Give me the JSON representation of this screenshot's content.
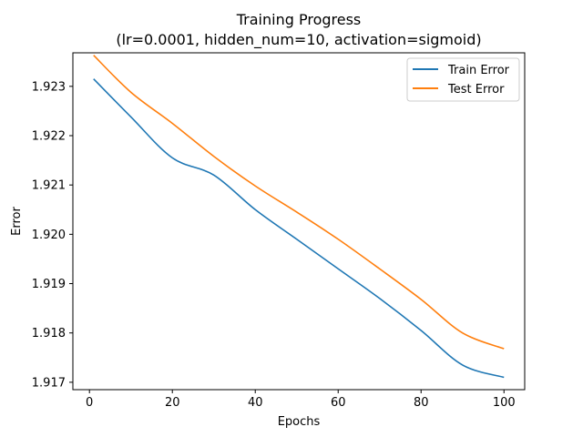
{
  "chart_data": {
    "type": "line",
    "title": "Training Progress",
    "subtitle": "(lr=0.0001, hidden_num=10, activation=sigmoid)",
    "xlabel": "Epochs",
    "ylabel": "Error",
    "xlim": [
      -4,
      105
    ],
    "ylim": [
      1.91685,
      1.92368
    ],
    "xticks": [
      0,
      20,
      40,
      60,
      80,
      100
    ],
    "yticks": [
      1.917,
      1.918,
      1.919,
      1.92,
      1.921,
      1.922,
      1.923
    ],
    "ytick_labels": [
      "1.917",
      "1.918",
      "1.919",
      "1.920",
      "1.921",
      "1.922",
      "1.923"
    ],
    "grid": false,
    "legend_position": "top-right",
    "series": [
      {
        "name": "Train Error",
        "color": "#1f77b4",
        "x": [
          1,
          10,
          20,
          30,
          40,
          50,
          60,
          70,
          80,
          90,
          100
        ],
        "y": [
          1.92315,
          1.92238,
          1.92155,
          1.9212,
          1.9205,
          1.9199,
          1.9193,
          1.9187,
          1.91805,
          1.91735,
          1.9171
        ]
      },
      {
        "name": "Test Error",
        "color": "#ff7f0e",
        "x": [
          1,
          10,
          20,
          30,
          40,
          50,
          60,
          70,
          80,
          90,
          100
        ],
        "y": [
          1.92363,
          1.92288,
          1.92225,
          1.92158,
          1.92098,
          1.92045,
          1.9199,
          1.9193,
          1.91868,
          1.918,
          1.91768
        ]
      }
    ]
  }
}
